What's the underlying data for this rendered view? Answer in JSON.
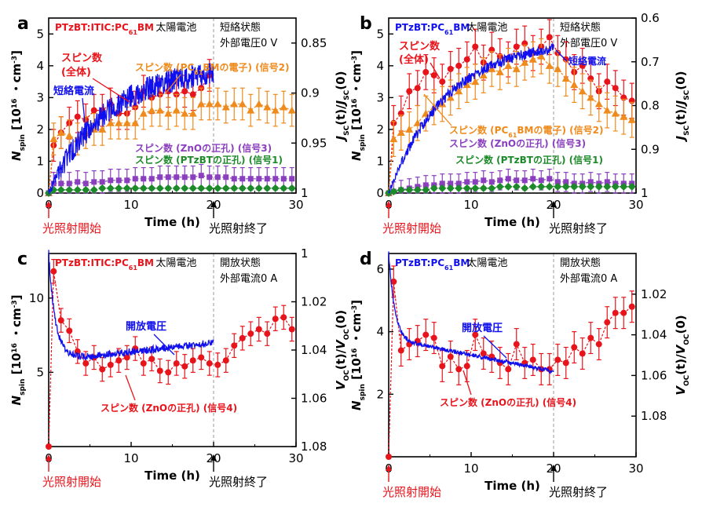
{
  "colors": {
    "red": "#e8141b",
    "orange": "#ef8a1c",
    "blue": "#1010ee",
    "purple": "#8a3fbf",
    "green": "#1d8a2a",
    "black": "#000000",
    "gray": "#999999"
  },
  "common": {
    "xlabel": "Time (h)",
    "xticks": [
      "0",
      "10",
      "20",
      "30"
    ],
    "ylabel_spin_base": "N",
    "ylabel_spin_sub": "spin",
    "ylabel_spin_unit": "[10",
    "ylabel_spin_exp": "16",
    "ylabel_spin_tail": "・cm",
    "ylabel_spin_tailexp": "-3",
    "ylabel_spin_close": "]",
    "start_label": "光照射開始",
    "end_label": "光照射終了"
  },
  "chart_data": [
    {
      "panel": "a",
      "type": "line",
      "title": "PTzBT:ITIC:PC61BM 太陽電池",
      "title_device": "PTzBT:ITIC:PC",
      "title_sub": "61",
      "title_tail": "BM",
      "title_suffix": " 太陽電池",
      "condition": [
        "短絡状態",
        "外部電圧0 V"
      ],
      "xlim": [
        0,
        30
      ],
      "ylim_left": [
        0,
        5.5
      ],
      "yticks_left": [
        "0",
        "1",
        "2",
        "3",
        "4",
        "5"
      ],
      "ylim_right": [
        1.0,
        0.825
      ],
      "yticks_right": [
        "0.85",
        "0.9",
        "0.95",
        "1"
      ],
      "right_label": "J_SC(t)/J_SC(0)",
      "right_label_parts": [
        "J",
        "SC",
        "(t)/",
        "J",
        "SC",
        "(0)"
      ],
      "series": [
        {
          "name": "スピン数 (全体)",
          "color": "red",
          "x": [
            0,
            0.6,
            1.5,
            2.5,
            3.5,
            4.5,
            5.5,
            6.5,
            7.5,
            8.5,
            9.5,
            10.5,
            11.5,
            12.5,
            13.5,
            14.5,
            15.5,
            16.5,
            17.5,
            18.5,
            19.5
          ],
          "y": [
            0,
            1.5,
            1.9,
            2.2,
            2.4,
            2.3,
            2.6,
            2.6,
            2.8,
            2.5,
            2.5,
            2.7,
            3.2,
            3.0,
            3.1,
            3.2,
            3.1,
            3.2,
            3.1,
            3.3,
            3.7
          ],
          "err": 0.5
        },
        {
          "name": "スピン数 (PC61BMの電子) (信号2)",
          "color": "orange",
          "x": [
            0,
            0.6,
            1.5,
            2.5,
            3.5,
            4.5,
            5.5,
            6.5,
            7.5,
            8.5,
            9.5,
            10.5,
            11.5,
            12.5,
            13.5,
            14.5,
            15.5,
            16.5,
            17.5,
            18.5,
            19.5,
            20.5,
            21.5,
            22.5,
            23.5,
            24.5,
            25.5,
            26.5,
            27.5,
            28.5,
            29.5
          ],
          "y": [
            0,
            1.7,
            1.9,
            1.8,
            1.7,
            1.9,
            2.0,
            2.0,
            2.2,
            2.2,
            2.2,
            2.2,
            2.5,
            2.6,
            2.6,
            2.5,
            2.6,
            2.5,
            2.5,
            2.8,
            2.8,
            2.8,
            2.7,
            2.8,
            2.8,
            2.6,
            2.8,
            2.7,
            2.6,
            2.7,
            2.6
          ],
          "err": 0.5
        },
        {
          "name": "スピン数 (ZnOの正孔) (信号3)",
          "color": "purple",
          "x": [
            0,
            0.6,
            1.5,
            2.5,
            3.5,
            4.5,
            5.5,
            6.5,
            7.5,
            8.5,
            9.5,
            10.5,
            11.5,
            12.5,
            13.5,
            14.5,
            15.5,
            16.5,
            17.5,
            18.5,
            19.5,
            20.5,
            21.5,
            22.5,
            23.5,
            24.5,
            25.5,
            26.5,
            27.5,
            28.5,
            29.5
          ],
          "y": [
            0,
            0.3,
            0.3,
            0.3,
            0.35,
            0.3,
            0.35,
            0.35,
            0.4,
            0.4,
            0.4,
            0.45,
            0.45,
            0.45,
            0.5,
            0.5,
            0.5,
            0.5,
            0.5,
            0.55,
            0.5,
            0.5,
            0.5,
            0.45,
            0.45,
            0.45,
            0.45,
            0.45,
            0.45,
            0.45,
            0.45
          ],
          "err": 0.35
        },
        {
          "name": "スピン数 (PTzBTの正孔) (信号1)",
          "color": "green",
          "x": [
            0,
            0.6,
            1.5,
            2.5,
            3.5,
            4.5,
            5.5,
            6.5,
            7.5,
            8.5,
            9.5,
            10.5,
            11.5,
            12.5,
            13.5,
            14.5,
            15.5,
            16.5,
            17.5,
            18.5,
            19.5,
            20.5,
            21.5,
            22.5,
            23.5,
            24.5,
            25.5,
            26.5,
            27.5,
            28.5,
            29.5
          ],
          "y": [
            0,
            0.1,
            0.1,
            0.1,
            0.1,
            0.1,
            0.1,
            0.15,
            0.15,
            0.15,
            0.15,
            0.15,
            0.15,
            0.15,
            0.15,
            0.15,
            0.15,
            0.15,
            0.15,
            0.15,
            0.15,
            0.15,
            0.15,
            0.15,
            0.15,
            0.15,
            0.15,
            0.15,
            0.15,
            0.15,
            0.15
          ],
          "err": 0.05
        },
        {
          "name": "短絡電流",
          "color": "blue",
          "axis": "right",
          "x_range": [
            0,
            20
          ],
          "start": 1.0,
          "end": 0.88,
          "noise": 0.012
        }
      ],
      "labels": [
        {
          "text": "スピン数",
          "color": "red"
        },
        {
          "text": "(全体)",
          "color": "red"
        },
        {
          "text": "スピン数 (PC",
          "color": "orange",
          "sub": "61",
          "tail": "BMの電子) (信号2)"
        },
        {
          "text": "短絡電流",
          "color": "blue"
        },
        {
          "text": "スピン数 (ZnOの正孔) (信号3)",
          "color": "purple"
        },
        {
          "text": "スピン数 (PTzBTの正孔) (信号1)",
          "color": "green"
        }
      ]
    },
    {
      "panel": "b",
      "type": "line",
      "title": "PTzBT:PC61BM太陽電池",
      "title_device": "PTzBT:PC",
      "title_sub": "61",
      "title_tail": "BM",
      "title_suffix": "太陽電池",
      "condition": [
        "短絡状態",
        "外部電圧0 V"
      ],
      "xlim": [
        0,
        30
      ],
      "ylim_left": [
        0,
        5.5
      ],
      "yticks_left": [
        "0",
        "1",
        "2",
        "3",
        "4",
        "5"
      ],
      "ylim_right": [
        1.0,
        0.6
      ],
      "yticks_right": [
        "0.6",
        "0.7",
        "0.8",
        "0.9",
        "1"
      ],
      "right_label": "J_SC(t)/J_SC(0)",
      "right_label_parts": [
        "J",
        "SC",
        "(t)/",
        "J",
        "SC",
        "(0)"
      ],
      "series": [
        {
          "name": "スピン数 (全体)",
          "color": "red",
          "x": [
            0,
            0.6,
            1.5,
            2.5,
            3.5,
            4.5,
            5.5,
            6.5,
            7.5,
            8.5,
            9.5,
            10.5,
            11.5,
            12.5,
            13.5,
            14.5,
            15.5,
            16.5,
            17.5,
            18.5,
            19.5,
            20.5,
            21.5,
            22.5,
            23.5,
            24.5,
            25.5,
            26.5,
            27.5,
            28.5,
            29.5
          ],
          "y": [
            0,
            2.2,
            2.5,
            3.2,
            3.3,
            3.8,
            3.7,
            3.5,
            3.9,
            4.0,
            4.2,
            4.6,
            4.1,
            4.5,
            4.3,
            4.2,
            4.6,
            4.7,
            4.4,
            4.6,
            4.9,
            4.4,
            4.2,
            3.8,
            4.0,
            3.6,
            3.2,
            3.5,
            3.3,
            3.0,
            2.9
          ],
          "err": 0.55
        },
        {
          "name": "スピン数 (PC61BMの電子) (信号2)",
          "color": "orange",
          "x": [
            0,
            0.6,
            1.5,
            2.5,
            3.5,
            4.5,
            5.5,
            6.5,
            7.5,
            8.5,
            9.5,
            10.5,
            11.5,
            12.5,
            13.5,
            14.5,
            15.5,
            16.5,
            17.5,
            18.5,
            19.5,
            20.5,
            21.5,
            22.5,
            23.5,
            24.5,
            25.5,
            26.5,
            27.5,
            28.5,
            29.5
          ],
          "y": [
            0,
            1.7,
            1.9,
            2.0,
            2.2,
            2.5,
            2.7,
            2.8,
            3.0,
            3.2,
            3.4,
            3.5,
            3.7,
            3.9,
            3.8,
            4.0,
            3.9,
            4.1,
            4.2,
            4.3,
            4.0,
            3.9,
            3.6,
            3.4,
            3.2,
            3.0,
            2.8,
            2.6,
            2.5,
            2.4,
            2.3
          ],
          "err": 0.55
        },
        {
          "name": "スピン数 (ZnOの正孔) (信号3)",
          "color": "purple",
          "x": [
            0,
            0.6,
            1.5,
            2.5,
            3.5,
            4.5,
            5.5,
            6.5,
            7.5,
            8.5,
            9.5,
            10.5,
            11.5,
            12.5,
            13.5,
            14.5,
            15.5,
            16.5,
            17.5,
            18.5,
            19.5,
            20.5,
            21.5,
            22.5,
            23.5,
            24.5,
            25.5,
            26.5,
            27.5,
            28.5,
            29.5
          ],
          "y": [
            0,
            0.05,
            0.1,
            0.15,
            0.2,
            0.25,
            0.25,
            0.3,
            0.3,
            0.3,
            0.35,
            0.35,
            0.4,
            0.35,
            0.4,
            0.45,
            0.4,
            0.4,
            0.45,
            0.4,
            0.45,
            0.35,
            0.35,
            0.3,
            0.3,
            0.35,
            0.3,
            0.35,
            0.3,
            0.3,
            0.3
          ],
          "err": 0.3
        },
        {
          "name": "スピン数 (PTzBTの正孔) (信号1)",
          "color": "green",
          "x": [
            0,
            0.6,
            1.5,
            2.5,
            3.5,
            4.5,
            5.5,
            6.5,
            7.5,
            8.5,
            9.5,
            10.5,
            11.5,
            12.5,
            13.5,
            14.5,
            15.5,
            16.5,
            17.5,
            18.5,
            19.5,
            20.5,
            21.5,
            22.5,
            23.5,
            24.5,
            25.5,
            26.5,
            27.5,
            28.5,
            29.5
          ],
          "y": [
            0,
            0.05,
            0.1,
            0.1,
            0.1,
            0.1,
            0.15,
            0.15,
            0.15,
            0.15,
            0.15,
            0.15,
            0.15,
            0.15,
            0.2,
            0.2,
            0.2,
            0.15,
            0.2,
            0.2,
            0.2,
            0.2,
            0.2,
            0.2,
            0.2,
            0.2,
            0.2,
            0.2,
            0.2,
            0.2,
            0.2
          ],
          "err": 0.05
        },
        {
          "name": "短絡電流",
          "color": "blue",
          "axis": "right",
          "x_range": [
            0,
            20
          ],
          "start": 1.0,
          "end": 0.67,
          "noise": 0.012
        }
      ],
      "labels": [
        {
          "text": "スピン数",
          "color": "red"
        },
        {
          "text": "(全体)",
          "color": "red"
        },
        {
          "text": "短絡電流",
          "color": "blue"
        },
        {
          "text": "スピン数 (PC",
          "color": "orange",
          "sub": "61",
          "tail": "BMの電子) (信号2)"
        },
        {
          "text": "スピン数 (ZnOの正孔) (信号3)",
          "color": "purple"
        },
        {
          "text": "スピン数 (PTzBTの正孔) (信号1)",
          "color": "green"
        }
      ]
    },
    {
      "panel": "c",
      "type": "line",
      "title": "PTzBT:ITIC:PC61BM 太陽電池",
      "title_device": "PTzBT:ITIC:PC",
      "title_sub": "61",
      "title_tail": "BM",
      "title_suffix": " 太陽電池",
      "condition": [
        "開放状態",
        "外部電流0 A"
      ],
      "xlim": [
        0,
        30
      ],
      "ylim_left": [
        0,
        13
      ],
      "yticks_left": [
        "5",
        "10"
      ],
      "yticks_left_values": [
        5,
        10
      ],
      "ylim_right": [
        1.08,
        1.0
      ],
      "yticks_right": [
        "1",
        "1.02",
        "1.04",
        "1.06",
        "1.08"
      ],
      "right_label": "V_OC(t)/V_OC(0)",
      "right_label_parts": [
        "V",
        "OC",
        "(t)/",
        "V",
        "OC",
        "(0)"
      ],
      "series": [
        {
          "name": "スピン数 (ZnOの正孔) (信号4)",
          "color": "red",
          "x": [
            0,
            0.6,
            1.5,
            2.5,
            3.5,
            4.5,
            5.5,
            6.5,
            7.5,
            8.5,
            9.5,
            10.5,
            11.5,
            12.5,
            13.5,
            14.5,
            15.5,
            16.5,
            17.5,
            18.5,
            19.5,
            20.5,
            21.5,
            22.5,
            23.5,
            24.5,
            25.5,
            26.5,
            27.5,
            28.5,
            29.5
          ],
          "y": [
            0,
            11.8,
            8.5,
            7.8,
            6.4,
            5.6,
            6.0,
            5.2,
            5.5,
            5.8,
            6.0,
            6.6,
            5.6,
            5.9,
            5.1,
            5.0,
            5.6,
            5.4,
            5.8,
            6.0,
            5.6,
            5.5,
            5.8,
            6.8,
            7.3,
            7.6,
            7.9,
            7.6,
            8.6,
            8.7,
            7.9
          ],
          "err": 0.8
        },
        {
          "name": "開放電圧",
          "color": "blue",
          "axis": "right",
          "x_range": [
            0,
            20
          ],
          "start": 1.0,
          "mid": 1.043,
          "end": 1.037,
          "noise": 0.0015
        }
      ],
      "labels": [
        {
          "text": "開放電圧",
          "color": "blue"
        },
        {
          "text": "スピン数 (ZnOの正孔) (信号4)",
          "color": "red"
        }
      ]
    },
    {
      "panel": "d",
      "type": "line",
      "title": "PTzBT:PC61BM太陽電池",
      "title_device": "PTzBT:PC",
      "title_sub": "61",
      "title_tail": "BM",
      "title_suffix": "太陽電池",
      "condition": [
        "開放状態",
        "外部電流0 A"
      ],
      "xlim": [
        0,
        30
      ],
      "ylim_left": [
        0,
        6.5
      ],
      "yticks_left": [
        "2",
        "4",
        "6"
      ],
      "yticks_left_values": [
        2,
        4,
        6
      ],
      "ylim_right": [
        1.1,
        1.0
      ],
      "yticks_right": [
        "1.02",
        "1.04",
        "1.06",
        "1.08"
      ],
      "right_label": "V_OC(t)/V_OC(0)",
      "right_label_parts": [
        "V",
        "OC",
        "(t)/",
        "V",
        "OC",
        "(0)"
      ],
      "series": [
        {
          "name": "スピン数 (ZnOの正孔) (信号4)",
          "color": "red",
          "x": [
            0,
            0.6,
            1.5,
            2.5,
            3.5,
            4.5,
            5.5,
            6.5,
            7.5,
            8.5,
            9.5,
            10.5,
            11.5,
            12.5,
            13.5,
            14.5,
            15.5,
            16.5,
            17.5,
            18.5,
            19.5,
            20.5,
            21.5,
            22.5,
            23.5,
            24.5,
            25.5,
            26.5,
            27.5,
            28.5,
            29.5
          ],
          "y": [
            0,
            5.6,
            3.4,
            3.6,
            3.7,
            3.9,
            3.8,
            2.9,
            3.2,
            2.8,
            2.9,
            3.9,
            3.3,
            3.2,
            3.0,
            2.8,
            3.6,
            3.0,
            3.1,
            2.8,
            2.8,
            3.1,
            3.0,
            3.5,
            3.3,
            3.8,
            3.6,
            4.3,
            4.6,
            4.6,
            4.8
          ],
          "err": 0.5
        },
        {
          "name": "開放電圧",
          "color": "blue",
          "axis": "right",
          "x_range": [
            0,
            20
          ],
          "start": 1.0,
          "mid": 1.045,
          "end": 1.058,
          "noise": 0.001
        }
      ],
      "labels": [
        {
          "text": "開放電圧",
          "color": "blue"
        },
        {
          "text": "スピン数 (ZnOの正孔) (信号4)",
          "color": "red"
        }
      ]
    }
  ]
}
